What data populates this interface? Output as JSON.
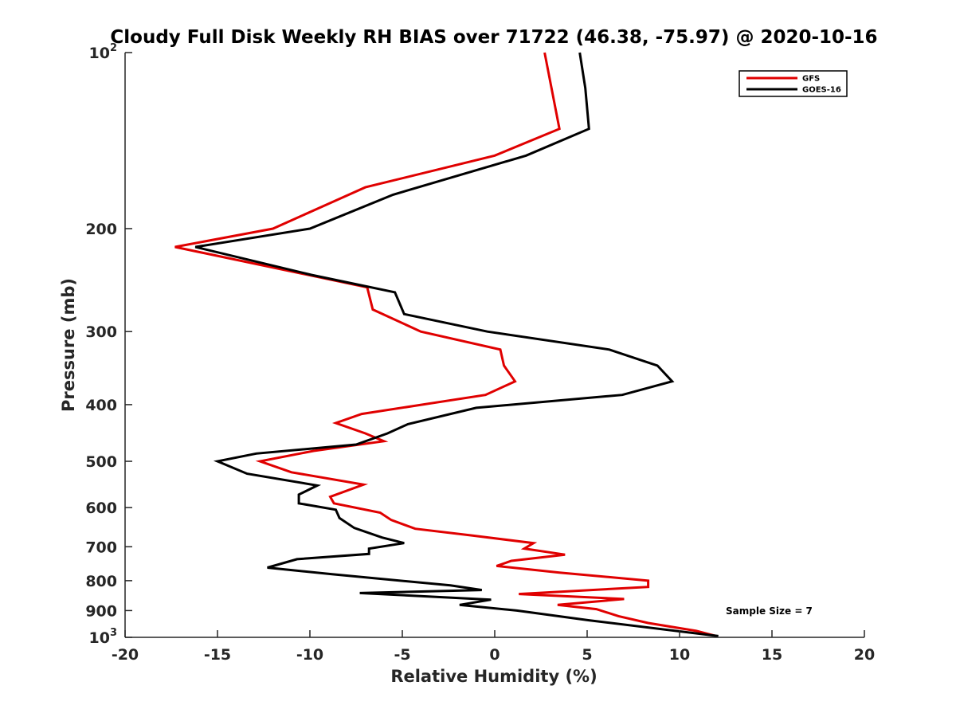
{
  "chart_data": {
    "type": "line",
    "orientation": "vertical-profile",
    "title": "Cloudy Full Disk Weekly RH BIAS over 71722 (46.38, -75.97) @ 2020-10-16",
    "xlabel": "Relative Humidity (%)",
    "ylabel": "Pressure (mb)",
    "xlim": [
      -20,
      20
    ],
    "ylim": [
      100,
      1000
    ],
    "yscale": "log",
    "y_reversed": true,
    "x_ticks": [
      -20,
      -15,
      -10,
      -5,
      0,
      5,
      10,
      15,
      20
    ],
    "x_tick_labels": [
      "-20",
      "-15",
      "-10",
      "-5",
      "0",
      "5",
      "10",
      "15",
      "20"
    ],
    "y_ticks": [
      100,
      200,
      300,
      400,
      500,
      600,
      700,
      800,
      900,
      1000
    ],
    "y_tick_labels": [
      {
        "base": "10",
        "sup": "2"
      },
      {
        "base": "200",
        "sup": ""
      },
      {
        "base": "300",
        "sup": ""
      },
      {
        "base": "400",
        "sup": ""
      },
      {
        "base": "500",
        "sup": ""
      },
      {
        "base": "600",
        "sup": ""
      },
      {
        "base": "700",
        "sup": ""
      },
      {
        "base": "800",
        "sup": ""
      },
      {
        "base": "900",
        "sup": ""
      },
      {
        "base": "10",
        "sup": "3"
      }
    ],
    "legend_position": "top-right",
    "annotation": "Sample Size = 7",
    "series": [
      {
        "name": "GFS",
        "color": "#e00000",
        "points": [
          [
            2.7,
            100
          ],
          [
            3.5,
            135
          ],
          [
            0.0,
            150
          ],
          [
            -7.0,
            170
          ],
          [
            -12.0,
            200
          ],
          [
            -17.3,
            215
          ],
          [
            -6.9,
            252
          ],
          [
            -6.6,
            275
          ],
          [
            -4.0,
            300
          ],
          [
            0.3,
            322
          ],
          [
            0.5,
            343
          ],
          [
            1.1,
            365
          ],
          [
            -0.5,
            385
          ],
          [
            -7.2,
            415
          ],
          [
            -8.6,
            430
          ],
          [
            -7.0,
            448
          ],
          [
            -6.0,
            462
          ],
          [
            -9.8,
            480
          ],
          [
            -12.7,
            500
          ],
          [
            -11.0,
            522
          ],
          [
            -7.1,
            548
          ],
          [
            -8.9,
            575
          ],
          [
            -8.7,
            590
          ],
          [
            -6.2,
            612
          ],
          [
            -5.6,
            630
          ],
          [
            -4.3,
            652
          ],
          [
            -1.2,
            670
          ],
          [
            2.1,
            690
          ],
          [
            1.6,
            705
          ],
          [
            3.8,
            722
          ],
          [
            0.9,
            740
          ],
          [
            0.1,
            755
          ],
          [
            3.5,
            775
          ],
          [
            8.3,
            800
          ],
          [
            8.3,
            820
          ],
          [
            1.3,
            843
          ],
          [
            7.0,
            860
          ],
          [
            3.4,
            880
          ],
          [
            5.5,
            895
          ],
          [
            6.7,
            920
          ],
          [
            8.3,
            945
          ],
          [
            10.9,
            975
          ],
          [
            12.0,
            995
          ]
        ]
      },
      {
        "name": "GOES-16",
        "color": "#000000",
        "points": [
          [
            4.6,
            100
          ],
          [
            4.9,
            115
          ],
          [
            5.1,
            135
          ],
          [
            1.7,
            150
          ],
          [
            -5.5,
            175
          ],
          [
            -10.0,
            200
          ],
          [
            -16.2,
            215
          ],
          [
            -9.9,
            240
          ],
          [
            -5.4,
            257
          ],
          [
            -4.9,
            280
          ],
          [
            -0.4,
            300
          ],
          [
            6.2,
            322
          ],
          [
            8.8,
            343
          ],
          [
            9.6,
            365
          ],
          [
            6.9,
            385
          ],
          [
            -1.0,
            405
          ],
          [
            -4.7,
            432
          ],
          [
            -5.8,
            448
          ],
          [
            -7.5,
            468
          ],
          [
            -12.9,
            485
          ],
          [
            -15.0,
            500
          ],
          [
            -13.4,
            525
          ],
          [
            -9.6,
            550
          ],
          [
            -10.6,
            570
          ],
          [
            -10.6,
            590
          ],
          [
            -8.6,
            605
          ],
          [
            -8.4,
            625
          ],
          [
            -7.6,
            650
          ],
          [
            -6.1,
            675
          ],
          [
            -4.9,
            690
          ],
          [
            -6.8,
            705
          ],
          [
            -6.8,
            720
          ],
          [
            -10.7,
            735
          ],
          [
            -12.3,
            760
          ],
          [
            -8.8,
            780
          ],
          [
            -2.4,
            815
          ],
          [
            -0.7,
            830
          ],
          [
            -7.3,
            840
          ],
          [
            -0.2,
            862
          ],
          [
            -1.9,
            880
          ],
          [
            1.2,
            900
          ],
          [
            5.1,
            935
          ],
          [
            12.1,
            995
          ]
        ]
      }
    ]
  }
}
